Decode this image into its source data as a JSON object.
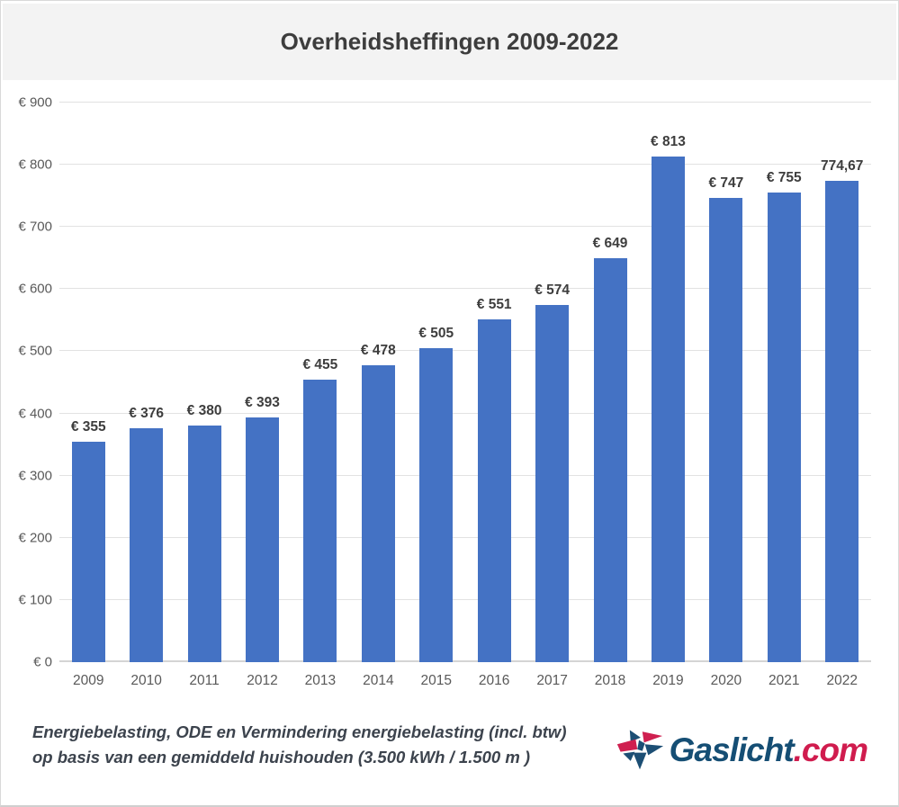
{
  "header": {
    "title": "Overheidsheffingen 2009-2022"
  },
  "chart_data": {
    "type": "bar",
    "title": "Overheidsheffingen 2009-2022",
    "categories": [
      "2009",
      "2010",
      "2011",
      "2012",
      "2013",
      "2014",
      "2015",
      "2016",
      "2017",
      "2018",
      "2019",
      "2020",
      "2021",
      "2022"
    ],
    "values": [
      355,
      376,
      380,
      393,
      455,
      478,
      505,
      551,
      574,
      649,
      813,
      747,
      755,
      774.67
    ],
    "bar_labels": [
      "€ 355",
      "€ 376",
      "€ 380",
      "€ 393",
      "€ 455",
      "€ 478",
      "€ 505",
      "€ 551",
      "€ 574",
      "€ 649",
      "€ 813",
      "€ 747",
      "€ 755",
      "774,67"
    ],
    "xlabel": "",
    "ylabel": "",
    "ylim": [
      0,
      900
    ],
    "ytick_step": 100,
    "ytick_labels": [
      "€ 0",
      "€ 100",
      "€ 200",
      "€ 300",
      "€ 400",
      "€ 500",
      "€ 600",
      "€ 700",
      "€ 800",
      "€ 900"
    ],
    "grid": true,
    "legend_position": "none",
    "bar_color": "#4472c4"
  },
  "footnote": {
    "line1": "Energiebelasting, ODE en Vermindering energiebelasting (incl. btw)",
    "line2": "op basis van een gemiddeld huishouden (3.500 kWh / 1.500 m )"
  },
  "logo": {
    "name": "Gaslicht",
    "tld": ".com",
    "name_color": "#154e74",
    "tld_color": "#d01c4e"
  }
}
